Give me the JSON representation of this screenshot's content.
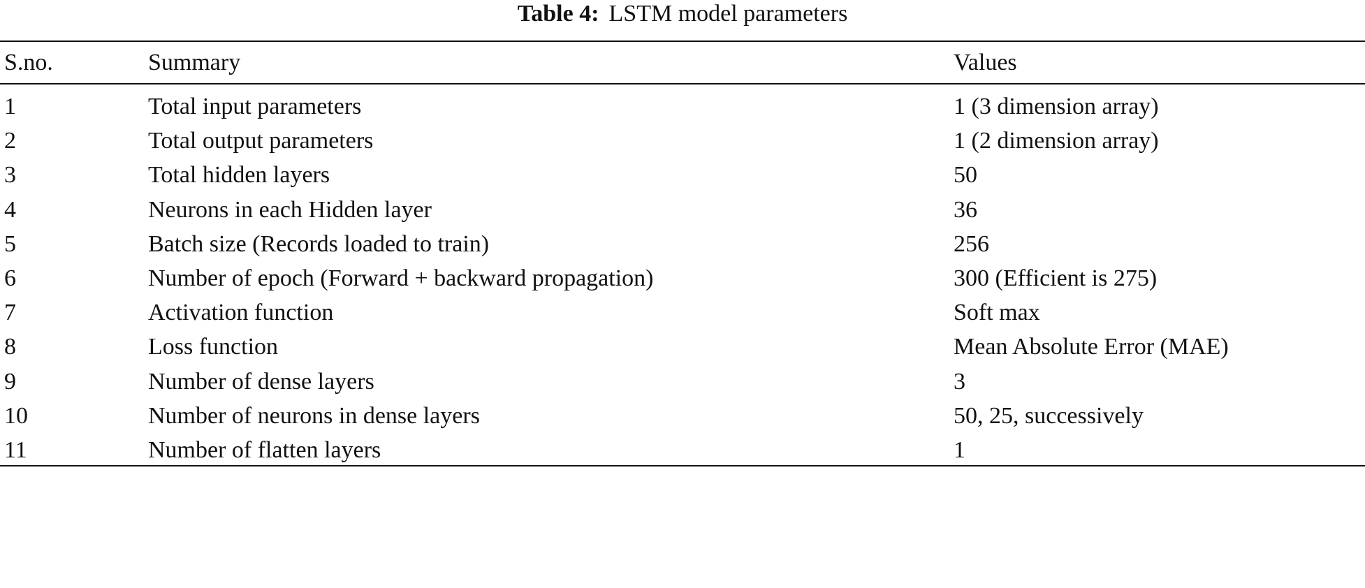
{
  "table": {
    "caption": {
      "label": "Table 4:",
      "text": "LSTM model parameters"
    },
    "header": [
      "S.no.",
      "Summary",
      "Values"
    ],
    "rows": [
      [
        "1",
        "Total input parameters",
        "1 (3 dimension array)"
      ],
      [
        "2",
        "Total output parameters",
        "1 (2 dimension array)"
      ],
      [
        "3",
        "Total hidden layers",
        "50"
      ],
      [
        "4",
        "Neurons in each Hidden layer",
        "36"
      ],
      [
        "5",
        "Batch size (Records loaded to train)",
        "256"
      ],
      [
        "6",
        "Number of epoch (Forward + backward propagation)",
        "300 (Efficient is 275)"
      ],
      [
        "7",
        "Activation function",
        "Soft max"
      ],
      [
        "8",
        "Loss function",
        "Mean Absolute Error (MAE)"
      ],
      [
        "9",
        "Number of dense layers",
        "3"
      ],
      [
        "10",
        "Number of neurons in dense layers",
        "50, 25, successively"
      ],
      [
        "11",
        "Number of flatten layers",
        "1"
      ]
    ]
  }
}
